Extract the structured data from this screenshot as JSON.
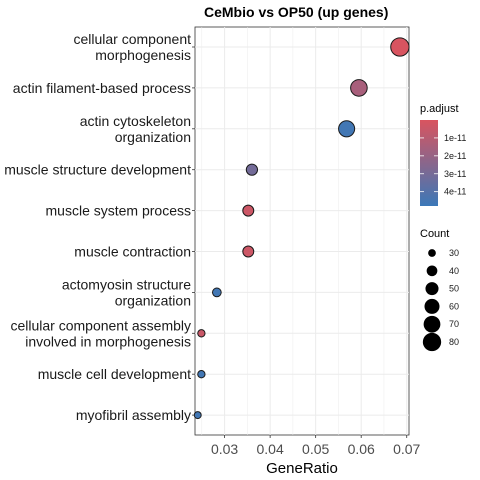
{
  "chart_data": {
    "type": "scatter",
    "title": "CeMbio vs OP50 (up genes)",
    "xlabel": "GeneRatio",
    "ylabel": "",
    "xlim": [
      0.0235,
      0.0705
    ],
    "xticks": [
      0.03,
      0.04,
      0.05,
      0.06,
      0.07
    ],
    "xtick_labels": [
      "0.03",
      "0.04",
      "0.05",
      "0.06",
      "0.07"
    ],
    "grid": true,
    "categories": [
      "cellular component\nmorphogenesis",
      "actin filament-based process",
      "actin cytoskeleton\norganization",
      "muscle structure development",
      "muscle system process",
      "muscle contraction",
      "actomyosin structure\norganization",
      "cellular component assembly\ninvolved in morphogenesis",
      "muscle cell development",
      "myofibril assembly"
    ],
    "points": [
      {
        "term": "cellular component\nmorphogenesis",
        "gene_ratio": 0.0685,
        "count": 80,
        "p_adjust": 4e-13
      },
      {
        "term": "actin filament-based process",
        "gene_ratio": 0.0595,
        "count": 69,
        "p_adjust": 1.5e-11
      },
      {
        "term": "actin cytoskeleton\norganization",
        "gene_ratio": 0.0568,
        "count": 66,
        "p_adjust": 4.6e-11
      },
      {
        "term": "muscle structure development",
        "gene_ratio": 0.036,
        "count": 42,
        "p_adjust": 3.1e-11
      },
      {
        "term": "muscle system process",
        "gene_ratio": 0.0352,
        "count": 41,
        "p_adjust": 4e-12
      },
      {
        "term": "muscle contraction",
        "gene_ratio": 0.0352,
        "count": 41,
        "p_adjust": 4e-12
      },
      {
        "term": "actomyosin structure\norganization",
        "gene_ratio": 0.0283,
        "count": 33,
        "p_adjust": 4.6e-11
      },
      {
        "term": "cellular component assembly\ninvolved in morphogenesis",
        "gene_ratio": 0.0249,
        "count": 29,
        "p_adjust": 5e-12
      },
      {
        "term": "muscle cell development",
        "gene_ratio": 0.0249,
        "count": 29,
        "p_adjust": 4.6e-11
      },
      {
        "term": "myofibril assembly",
        "gene_ratio": 0.0241,
        "count": 28,
        "p_adjust": 4.6e-11
      }
    ],
    "color_legend": {
      "title": "p.adjust",
      "range": [
        0,
        4.8e-11
      ],
      "tick_values": [
        1e-11,
        2e-11,
        3e-11,
        4e-11
      ],
      "tick_labels": [
        "1e-11",
        "2e-11",
        "3e-11",
        "4e-11"
      ],
      "low_color": "#d9545f",
      "high_color": "#3b78b8"
    },
    "size_legend": {
      "title": "Count",
      "values": [
        30,
        40,
        50,
        60,
        70,
        80
      ],
      "labels": [
        "30",
        "40",
        "50",
        "60",
        "70",
        "80"
      ],
      "domain": [
        28,
        80
      ]
    },
    "legend_position": "right"
  }
}
